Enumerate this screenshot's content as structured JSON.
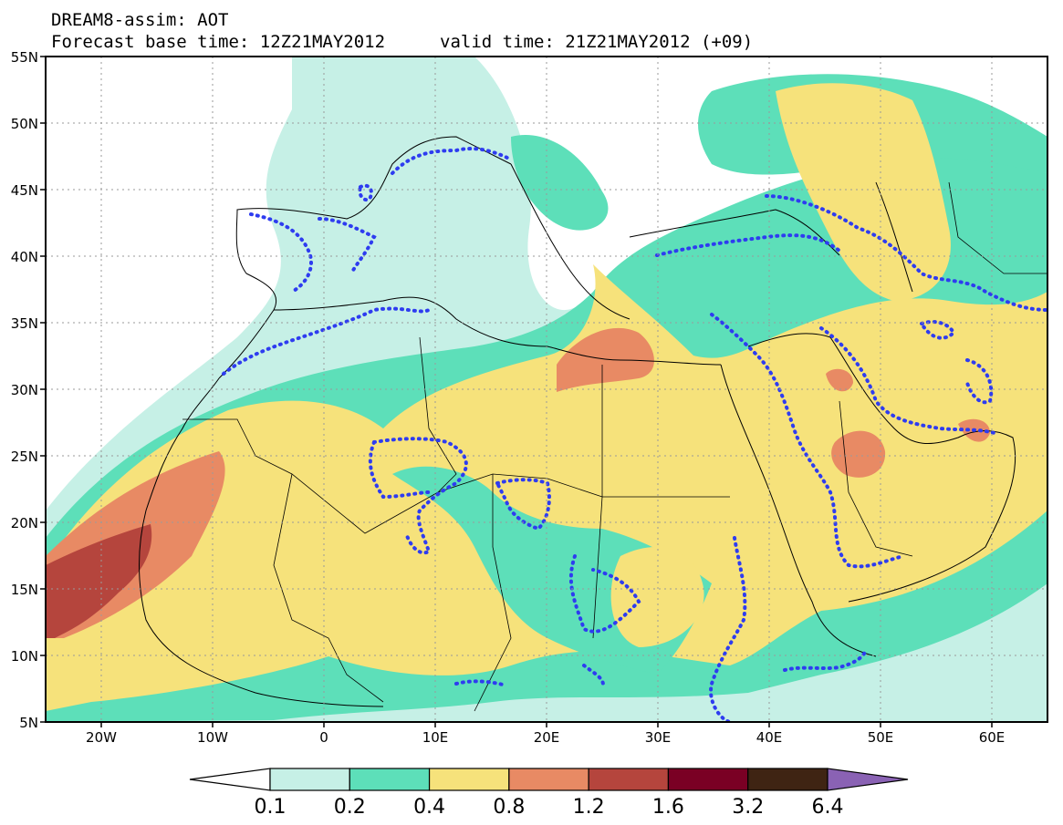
{
  "header": {
    "line1": "DREAM8-assim: AOT",
    "line2": "Forecast base time: 12Z21MAY2012",
    "valid": "valid time: 21Z21MAY2012 (+09)"
  },
  "map": {
    "lon_range": [
      -25,
      65
    ],
    "lat_range": [
      5,
      55
    ],
    "lat_ticks": [
      "55N",
      "50N",
      "45N",
      "40N",
      "35N",
      "30N",
      "25N",
      "20N",
      "15N",
      "10N",
      "5N"
    ],
    "lon_ticks": [
      "20W",
      "10W",
      "0",
      "10E",
      "20E",
      "30E",
      "40E",
      "50E",
      "60E"
    ],
    "grid": "dotted",
    "projection": "lat-lon"
  },
  "colorbar": {
    "labels": [
      "0.1",
      "0.2",
      "0.4",
      "0.8",
      "1.2",
      "1.6",
      "3.2",
      "6.4"
    ],
    "colors": [
      "#ffffff",
      "#c6f0e6",
      "#5ddfb9",
      "#f6e27b",
      "#e88a64",
      "#b5453d",
      "#7a0024",
      "#3f2413",
      "#8a62b4"
    ]
  },
  "overlay": {
    "dotted_contour_color": "#2e3cf0"
  }
}
